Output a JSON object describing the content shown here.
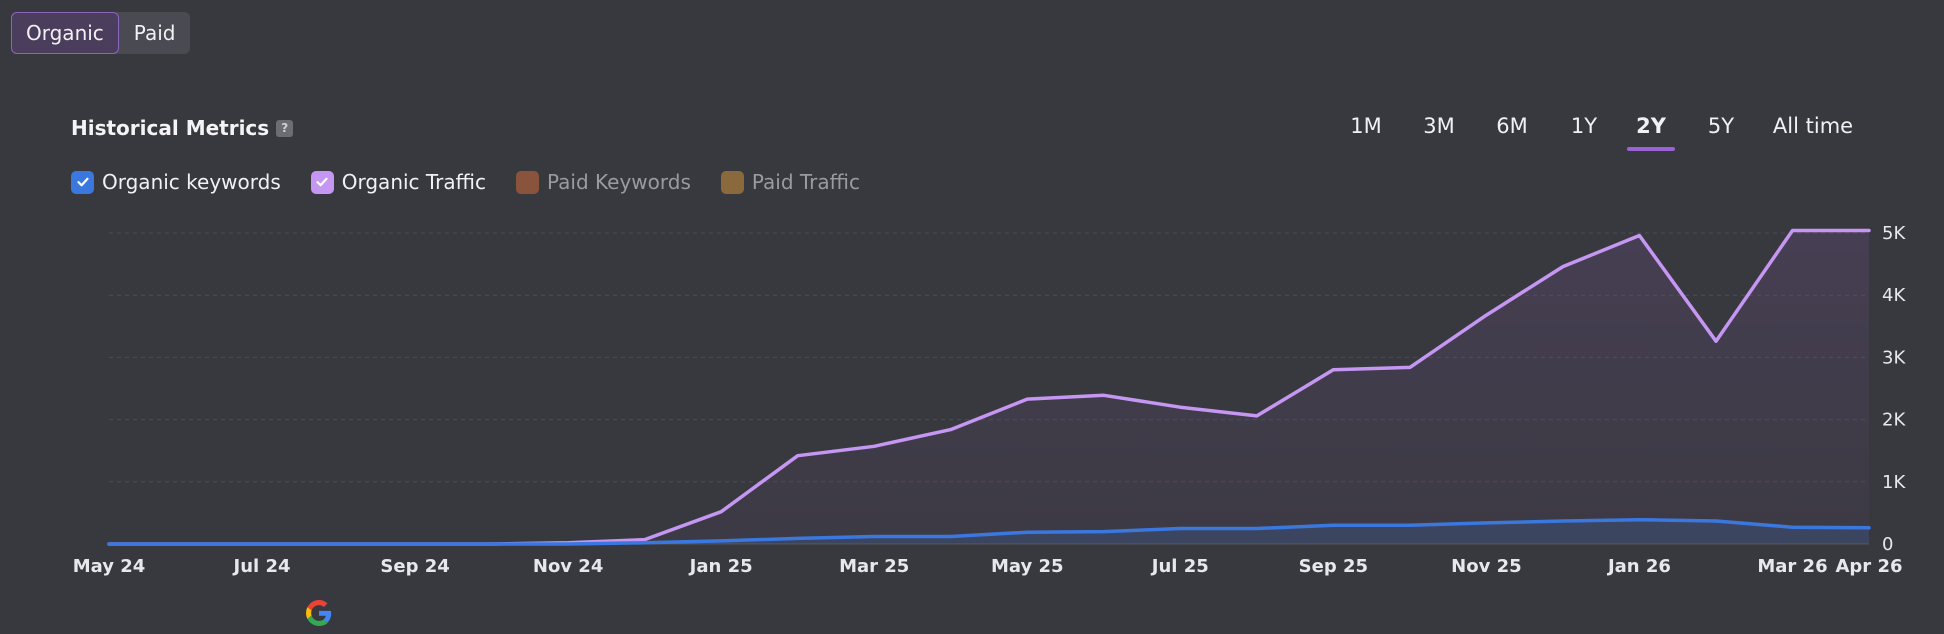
{
  "toggle": {
    "organic_label": "Organic",
    "paid_label": "Paid",
    "selected": "Organic"
  },
  "metrics": {
    "title": "Historical Metrics",
    "help_badge": "?"
  },
  "range_tabs": [
    "1M",
    "3M",
    "6M",
    "1Y",
    "2Y",
    "5Y",
    "All time"
  ],
  "range_selected": "2Y",
  "legend": [
    {
      "label": "Organic keywords",
      "color": "#3a78e0",
      "checked": true
    },
    {
      "label": "Organic Traffic",
      "color": "#c596f2",
      "checked": true
    },
    {
      "label": "Paid Keywords",
      "color": "#8a543c",
      "checked": false
    },
    {
      "label": "Paid Traffic",
      "color": "#8a6a3c",
      "checked": false
    }
  ],
  "colors": {
    "background": "#38383f",
    "accent": "#9b62d6",
    "traffic_line": "#c596f2",
    "keywords_line": "#3a78e0"
  },
  "icons": {
    "checkmark": "check-icon",
    "search_engine": "google-icon"
  },
  "chart_data": {
    "type": "line",
    "x": [
      "May 24",
      "Jun 24",
      "Jul 24",
      "Aug 24",
      "Sep 24",
      "Oct 24",
      "Nov 24",
      "Dec 24",
      "Jan 25",
      "Feb 25",
      "Mar 25",
      "Apr 25",
      "May 25",
      "Jun 25",
      "Jul 25",
      "Aug 25",
      "Sep 25",
      "Oct 25",
      "Nov 25",
      "Dec 25",
      "Jan 26",
      "Feb 26",
      "Mar 26",
      "Apr 26"
    ],
    "x_tick_labels": [
      "May 24",
      "Jul 24",
      "Sep 24",
      "Nov 24",
      "Jan 25",
      "Mar 25",
      "May 25",
      "Jul 25",
      "Sep 25",
      "Nov 25",
      "Jan 26",
      "Mar 26",
      "Apr 26"
    ],
    "y_tick_labels": [
      "0",
      "1K",
      "2K",
      "3K",
      "4K",
      "5K"
    ],
    "ylim": [
      0,
      5000
    ],
    "y_axis_position": "right",
    "grid": true,
    "series": [
      {
        "name": "Organic Traffic",
        "color": "#c596f2",
        "area": true,
        "values": [
          0,
          0,
          0,
          0,
          0,
          0,
          20,
          70,
          520,
          1420,
          1570,
          1840,
          2330,
          2390,
          2200,
          2060,
          2800,
          2840,
          3680,
          4460,
          4960,
          3260,
          5040,
          5040
        ]
      },
      {
        "name": "Organic keywords",
        "color": "#3a78e0",
        "area": true,
        "values": [
          0,
          0,
          0,
          0,
          0,
          0,
          0,
          20,
          50,
          90,
          120,
          120,
          190,
          200,
          250,
          250,
          300,
          300,
          340,
          370,
          390,
          370,
          270,
          260
        ]
      }
    ]
  }
}
